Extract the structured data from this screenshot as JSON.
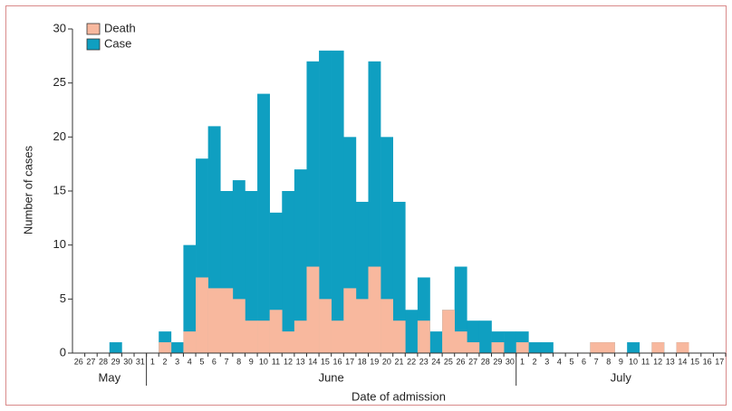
{
  "chart_data": {
    "type": "bar",
    "x_label": "Date of admission",
    "y_label": "Number of cases",
    "categories": [
      "26",
      "27",
      "28",
      "29",
      "30",
      "31",
      "1",
      "2",
      "3",
      "4",
      "5",
      "6",
      "7",
      "8",
      "9",
      "10",
      "11",
      "12",
      "13",
      "14",
      "15",
      "16",
      "17",
      "18",
      "19",
      "20",
      "21",
      "22",
      "23",
      "24",
      "25",
      "26",
      "27",
      "28",
      "29",
      "30",
      "1",
      "2",
      "3",
      "4",
      "5",
      "6",
      "7",
      "8",
      "9",
      "10",
      "11",
      "12",
      "13",
      "14",
      "15",
      "16",
      "17"
    ],
    "months": [
      "May",
      "June",
      "July"
    ],
    "series": [
      {
        "name": "Death",
        "color": "#f8b89e",
        "values": [
          0,
          0,
          0,
          0,
          0,
          0,
          0,
          1,
          0,
          2,
          7,
          6,
          6,
          5,
          3,
          3,
          4,
          2,
          3,
          8,
          5,
          3,
          6,
          5,
          8,
          5,
          3,
          0,
          3,
          0,
          4,
          2,
          1,
          0,
          1,
          0,
          1,
          0,
          0,
          0,
          0,
          0,
          1,
          1,
          0,
          0,
          0,
          1,
          0,
          1,
          0,
          0,
          0
        ]
      },
      {
        "name": "Case",
        "color": "#0f9fc1",
        "values": [
          0,
          0,
          0,
          1,
          0,
          0,
          0,
          2,
          1,
          10,
          18,
          21,
          15,
          16,
          15,
          24,
          13,
          15,
          17,
          27,
          28,
          28,
          20,
          14,
          27,
          20,
          14,
          4,
          7,
          2,
          4,
          8,
          3,
          3,
          2,
          2,
          2,
          1,
          1,
          0,
          0,
          0,
          1,
          1,
          0,
          1,
          0,
          1,
          0,
          1,
          0,
          0,
          0
        ]
      }
    ],
    "ylim": [
      0,
      30
    ],
    "yticks": [
      0,
      5,
      10,
      15,
      20,
      25,
      30
    ]
  }
}
